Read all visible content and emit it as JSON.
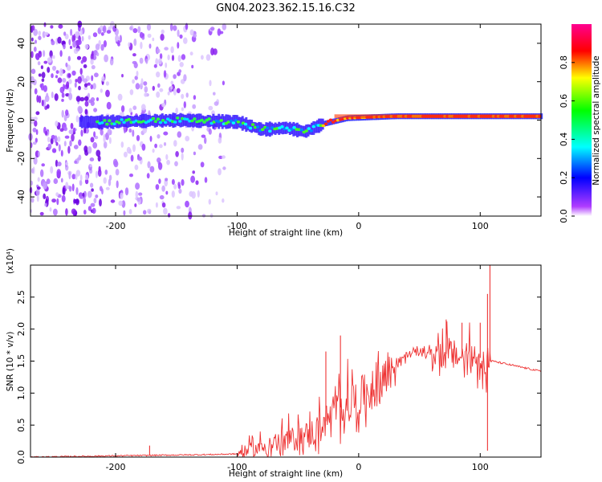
{
  "title": "GN04.2023.362.15.16.C32",
  "chart_data": [
    {
      "type": "heatmap",
      "xlabel": "Height of straight line (km)",
      "ylabel": "Frequency (Hz)",
      "xlim": [
        -270,
        150
      ],
      "ylim": [
        -50,
        50
      ],
      "x_ticks": [
        -200,
        -100,
        0,
        100
      ],
      "y_ticks": [
        -40,
        -20,
        0,
        20,
        40
      ],
      "colorbar": {
        "label": "Normalized spectral amplitude",
        "ticks": [
          0.0,
          0.2,
          0.4,
          0.6,
          0.8
        ],
        "range": [
          0,
          1
        ]
      },
      "ridge": [
        {
          "x": -210,
          "y": -1
        },
        {
          "x": -150,
          "y": 0
        },
        {
          "x": -100,
          "y": -1
        },
        {
          "x": -80,
          "y": -5
        },
        {
          "x": -60,
          "y": -4
        },
        {
          "x": -45,
          "y": -6
        },
        {
          "x": -30,
          "y": -2
        },
        {
          "x": -10,
          "y": 1
        },
        {
          "x": 30,
          "y": 2
        },
        {
          "x": 80,
          "y": 2
        },
        {
          "x": 150,
          "y": 2
        }
      ]
    },
    {
      "type": "line",
      "xlabel": "Height of straight line (km)",
      "ylabel": "SNR (10 * v/v)",
      "multiplier": "(x10⁴)",
      "xlim": [
        -270,
        150
      ],
      "ylim": [
        0,
        3.0
      ],
      "x_ticks": [
        -200,
        -100,
        0,
        100
      ],
      "y_ticks": [
        0.0,
        0.5,
        1.0,
        1.5,
        2.0,
        2.5
      ],
      "color": "#ee3333",
      "series": [
        {
          "x": [
            -270,
            -200,
            -160,
            -120,
            -100,
            -90,
            -80,
            -70,
            -60,
            -50,
            -40,
            -30,
            -20,
            -10,
            0,
            10,
            20,
            30,
            40,
            50,
            60,
            70,
            80,
            90,
            100,
            105,
            110,
            120,
            130,
            140,
            150
          ],
          "y": [
            0.0,
            0.02,
            0.03,
            0.04,
            0.05,
            0.1,
            0.15,
            0.2,
            0.25,
            0.3,
            0.35,
            0.5,
            0.7,
            0.85,
            0.9,
            1.05,
            1.25,
            1.45,
            1.6,
            1.65,
            1.63,
            1.62,
            1.58,
            1.55,
            1.55,
            1.5,
            1.5,
            1.46,
            1.42,
            1.38,
            1.34
          ]
        }
      ],
      "spikes": [
        {
          "x": -172,
          "y": 0.18
        },
        {
          "x": -27,
          "y": 1.65
        },
        {
          "x": -15,
          "y": 1.9
        },
        {
          "x": 72,
          "y": 2.15
        },
        {
          "x": 85,
          "y": 2.1
        },
        {
          "x": 100,
          "y": 2.1
        },
        {
          "x": 106,
          "y": 2.55
        },
        {
          "x": 108,
          "y": 3.0
        }
      ]
    }
  ]
}
